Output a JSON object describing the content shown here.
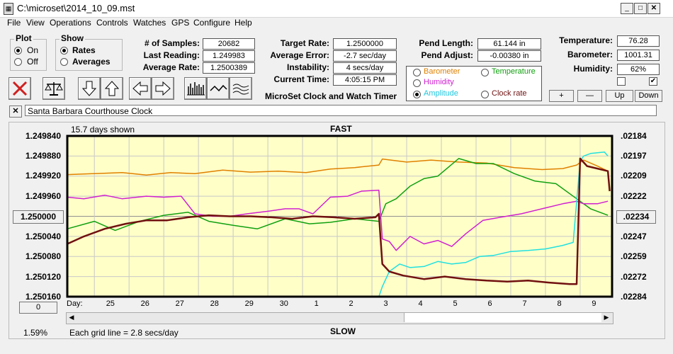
{
  "window": {
    "title": "C:\\microset\\2014_10_09.mst"
  },
  "menu": [
    "File",
    "View",
    "Operations",
    "Controls",
    "Watches",
    "GPS",
    "Configure",
    "Help"
  ],
  "plot_group": {
    "title": "Plot",
    "on": "On",
    "off": "Off"
  },
  "show_group": {
    "title": "Show",
    "rates": "Rates",
    "averages": "Averages"
  },
  "stats": {
    "samples_label": "# of Samples:",
    "samples": "20682",
    "last_label": "Last Reading:",
    "last": "1.249983",
    "avg_label": "Average Rate:",
    "avg": "1.2500389"
  },
  "rate": {
    "target_label": "Target Rate:",
    "target": "1.2500000",
    "error_label": "Average Error:",
    "error": "-2.7 sec/day",
    "instab_label": "Instability:",
    "instab": "4 secs/day",
    "time_label": "Current Time:",
    "time": "4:05:15 PM"
  },
  "pend": {
    "length_label": "Pend Length:",
    "length": "61.144 in",
    "adjust_label": "Pend Adjust:",
    "adjust": "-0.00380 in"
  },
  "env": {
    "temp_label": "Temperature:",
    "temp": "76.28",
    "baro_label": "Barometer:",
    "baro": "1001.31",
    "hum_label": "Humidity:",
    "hum": "62%"
  },
  "app_caption": "MicroSet Clock and Watch Timer",
  "series_select": {
    "barometer": "Barometer",
    "temperature": "Temperature",
    "humidity": "Humidity",
    "amplitude": "Amplitude",
    "clock_rate": "Clock rate"
  },
  "pm_buttons": {
    "plus": "+",
    "minus": "—",
    "up": "Up",
    "down": "Down"
  },
  "description": {
    "close": "✕",
    "text": "Santa Barbara Courthouse Clock"
  },
  "graph": {
    "days_shown": "15.7 days shown",
    "fast": "FAST",
    "slow": "SLOW",
    "grid_note": "Each grid line = 2.8 secs/day",
    "percent": "1.59%",
    "left_center_button": "1.250000",
    "right_center_button": ".02234",
    "bottom_button": "0",
    "day_label": "Day:"
  },
  "colors": {
    "barometer": "#e08000",
    "temperature": "#10a010",
    "humidity": "#d020d0",
    "amplitude": "#20e0e0",
    "clock_rate": "#701010",
    "plot_bg": "#ffffc8"
  },
  "chart_data": {
    "type": "line",
    "left_axis_ticks": [
      "1.249840",
      "1.249880",
      "1.249920",
      "1.249960",
      "1.250000",
      "1.250040",
      "1.250080",
      "1.250120",
      "1.250160"
    ],
    "right_axis_ticks": [
      ".02184",
      ".02197",
      ".02209",
      ".02222",
      ".02234",
      ".02247",
      ".02259",
      ".02272",
      ".02284"
    ],
    "x_ticks": [
      "25",
      "26",
      "27",
      "28",
      "29",
      "30",
      "1",
      "2",
      "3",
      "4",
      "5",
      "6",
      "7",
      "8",
      "9"
    ],
    "x_tick_pos": [
      25,
      26,
      27,
      28,
      29,
      30,
      31,
      32,
      33,
      34,
      35,
      36,
      37,
      38,
      39
    ],
    "xlim": [
      23.72,
      39.42
    ],
    "ylim_left": [
      1.24984,
      1.25016
    ],
    "series": [
      {
        "name": "Barometer",
        "color": "#e08000",
        "x": [
          23.72,
          24.5,
          25.3,
          26,
          26.7,
          27.4,
          28.2,
          29,
          29.8,
          30.6,
          31.3,
          32,
          32.7,
          32.8,
          33.5,
          34.2,
          35,
          35.8,
          36.6,
          37.4,
          38,
          38.4,
          38.6,
          39,
          39.3
        ],
        "y": [
          1.249917,
          1.249915,
          1.249913,
          1.249918,
          1.249913,
          1.249915,
          1.249908,
          1.249912,
          1.24991,
          1.249913,
          1.249906,
          1.249903,
          1.249898,
          1.249886,
          1.249892,
          1.249888,
          1.249892,
          1.249894,
          1.249903,
          1.249907,
          1.249905,
          1.249898,
          1.249888,
          1.2499,
          1.24991
        ]
      },
      {
        "name": "Temperature",
        "color": "#10a010",
        "x": [
          23.72,
          24.5,
          25.1,
          25.8,
          26.5,
          27.2,
          27.8,
          28.5,
          29.2,
          30,
          30.7,
          31.3,
          32,
          32.7,
          32.9,
          33.2,
          33.6,
          34,
          34.4,
          35,
          35.5,
          36,
          36.6,
          37.2,
          37.8,
          38.4,
          38.8,
          39.3
        ],
        "y": [
          1.250025,
          1.25001,
          1.250028,
          1.25001,
          1.249998,
          1.249992,
          1.25001,
          1.250018,
          1.250025,
          1.250005,
          1.250015,
          1.250012,
          1.250005,
          1.25001,
          1.249975,
          1.249965,
          1.24994,
          1.249925,
          1.24992,
          1.249885,
          1.249895,
          1.249895,
          1.249915,
          1.24993,
          1.249935,
          1.249965,
          1.249985,
          1.249998
        ]
      },
      {
        "name": "Humidity",
        "color": "#d020d0",
        "x": [
          23.72,
          24.2,
          24.8,
          25.3,
          26,
          26.5,
          27,
          27.4,
          27.9,
          28.4,
          28.9,
          29.5,
          30,
          30.4,
          30.8,
          31.3,
          31.8,
          32.2,
          32.7,
          32.8,
          33,
          33.2,
          33.6,
          34,
          34.4,
          34.8,
          35.2,
          35.7,
          36.2,
          36.8,
          37.4,
          38,
          38.4,
          38.6,
          39,
          39.3
        ],
        "y": [
          1.249962,
          1.249965,
          1.249958,
          1.249965,
          1.24996,
          1.249962,
          1.24996,
          1.249995,
          1.25,
          1.25,
          1.249995,
          1.24999,
          1.249985,
          1.249985,
          1.249995,
          1.249962,
          1.24996,
          1.24995,
          1.249948,
          1.250045,
          1.25005,
          1.250068,
          1.25004,
          1.250055,
          1.250048,
          1.25006,
          1.250035,
          1.250008,
          1.250002,
          1.249995,
          1.249985,
          1.249975,
          1.24997,
          1.249975,
          1.249975,
          1.24997
        ]
      },
      {
        "name": "Amplitude",
        "color": "#20e0e0",
        "x": [
          23.72,
          30,
          32.7,
          32.8,
          33,
          33.3,
          33.6,
          34,
          34.4,
          34.8,
          35.2,
          35.6,
          36,
          36.5,
          37,
          37.5,
          38,
          38.3,
          38.5,
          38.6,
          38.8,
          39.2,
          39.3
        ],
        "y": [
          1.25016,
          1.25016,
          1.25016,
          1.25014,
          1.25011,
          1.250095,
          1.250102,
          1.2501,
          1.25009,
          1.250095,
          1.250092,
          1.25008,
          1.250078,
          1.25007,
          1.250068,
          1.250065,
          1.250058,
          1.250052,
          1.24989,
          1.24988,
          1.249875,
          1.249872,
          1.24988
        ]
      },
      {
        "name": "Clock rate",
        "color": "#701010",
        "x": [
          23.72,
          24.2,
          24.8,
          25.4,
          26,
          26.6,
          27.2,
          27.8,
          28.4,
          29,
          29.6,
          30.2,
          30.8,
          31.4,
          32,
          32.6,
          32.7,
          32.8,
          33,
          33.4,
          34,
          34.6,
          35.2,
          35.8,
          36.4,
          37,
          37.6,
          38.2,
          38.4,
          38.5,
          38.7,
          39,
          39.3,
          39.35
        ],
        "y": [
          1.250055,
          1.25004,
          1.250025,
          1.250015,
          1.250008,
          1.250008,
          1.250002,
          1.249998,
          1.25,
          1.25,
          1.250002,
          1.250005,
          1.25,
          1.250002,
          1.250005,
          1.250002,
          1.249995,
          1.250095,
          1.25011,
          1.250118,
          1.250125,
          1.25012,
          1.250125,
          1.250128,
          1.25013,
          1.250128,
          1.250132,
          1.250135,
          1.250135,
          1.249885,
          1.2499,
          1.249905,
          1.24991,
          1.24995
        ]
      }
    ]
  }
}
